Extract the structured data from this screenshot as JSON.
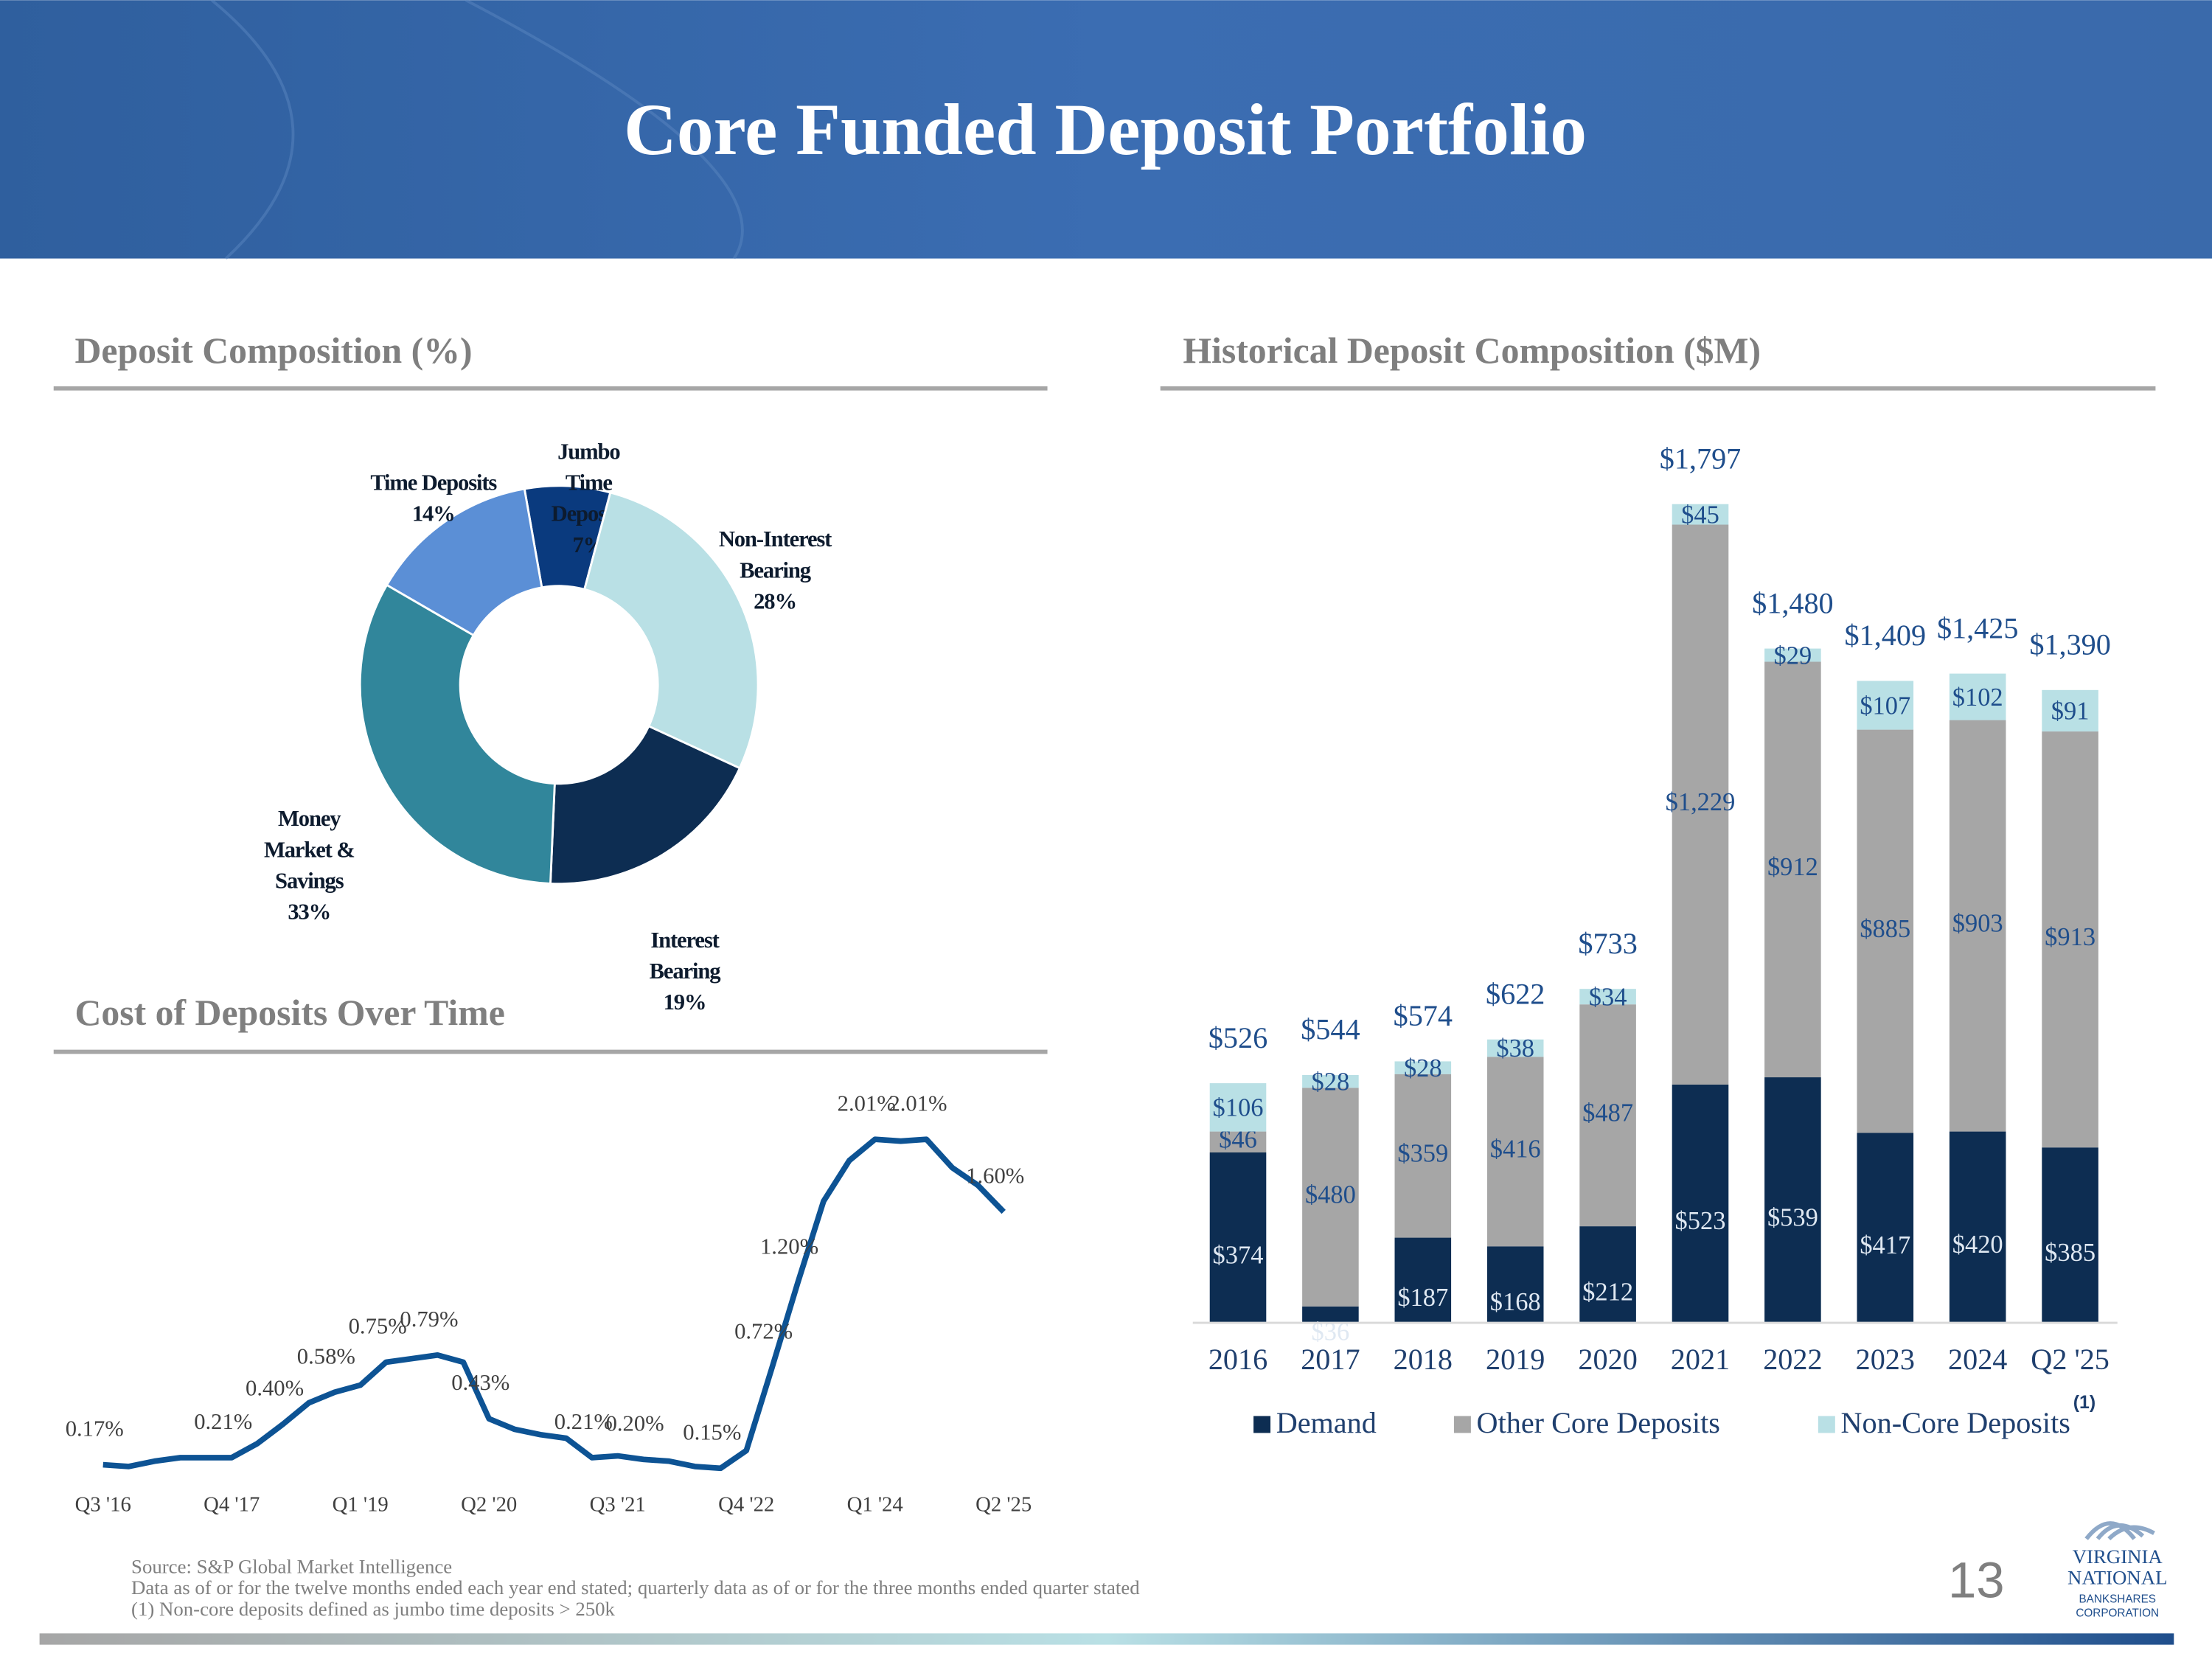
{
  "title": "Core Funded Deposit Portfolio",
  "page_number": "13",
  "footnotes": [
    "Source: S&P Global Market Intelligence",
    "Data as of or for the twelve months ended each year end stated; quarterly data as of or for the three months ended quarter stated",
    "(1)    Non-core deposits defined as jumbo time deposits > 250k"
  ],
  "logo": [
    "VIRGINIA",
    "NATIONAL",
    "BANKSHARES",
    "CORPORATION"
  ],
  "chart_data": [
    {
      "type": "pie",
      "title": "Deposit Composition (%)",
      "categories": [
        "Jumbo Time Deposits",
        "Non-Interest Bearing",
        "Interest Bearing",
        "Money Market & Savings",
        "Time Deposits"
      ],
      "values": [
        7,
        28,
        19,
        33,
        14
      ],
      "value_labels": [
        "7%",
        "28%",
        "19%",
        "33%",
        "14%"
      ],
      "colors": [
        "#0a3a7e",
        "#b9e0e5",
        "#0d2d52",
        "#31869b",
        "#5b8fd6"
      ]
    },
    {
      "type": "line",
      "title": "Cost of Deposits Over Time",
      "categories": [
        "Q3 '16",
        null,
        null,
        null,
        null,
        "Q4 '17",
        null,
        null,
        null,
        null,
        "Q1 '19",
        null,
        null,
        null,
        null,
        "Q2 '20",
        null,
        null,
        null,
        null,
        "Q3 '21",
        null,
        null,
        null,
        null,
        "Q4 '22",
        null,
        null,
        null,
        null,
        "Q1 '24",
        null,
        null,
        null,
        null,
        "Q2 '25"
      ],
      "values": [
        0.17,
        0.16,
        0.19,
        0.21,
        0.21,
        0.21,
        0.29,
        0.4,
        0.52,
        0.58,
        0.62,
        0.75,
        0.77,
        0.79,
        0.75,
        0.43,
        0.37,
        0.34,
        0.32,
        0.21,
        0.22,
        0.2,
        0.19,
        0.16,
        0.15,
        0.25,
        0.72,
        1.2,
        1.66,
        1.89,
        2.01,
        2.0,
        2.01,
        1.85,
        1.75,
        1.6
      ],
      "value_labels": [
        "0.17%",
        null,
        null,
        null,
        null,
        "0.21%",
        null,
        "0.40%",
        null,
        "0.58%",
        null,
        "0.75%",
        null,
        "0.79%",
        null,
        "0.43%",
        null,
        null,
        null,
        "0.21%",
        null,
        "0.20%",
        null,
        null,
        "0.15%",
        null,
        "0.72%",
        "1.20%",
        null,
        null,
        "2.01%",
        null,
        "2.01%",
        null,
        null,
        "1.60%"
      ],
      "color": "#0d5394"
    },
    {
      "type": "bar",
      "title": "Historical Deposit Composition ($M)",
      "stacked": true,
      "categories": [
        "2016",
        "2017",
        "2018",
        "2019",
        "2020",
        "2021",
        "2022",
        "2023",
        "2024",
        "Q2 '25"
      ],
      "series": [
        {
          "name": "Demand",
          "color": "#0d2d52",
          "values": [
            374,
            36,
            187,
            168,
            212,
            523,
            539,
            417,
            420,
            385
          ],
          "value_labels": [
            "$374",
            "$36",
            "$187",
            "$168",
            "$212",
            "$523",
            "$539",
            "$417",
            "$420",
            "$385"
          ]
        },
        {
          "name": "Other Core Deposits",
          "color": "#a6a6a6",
          "values": [
            46,
            480,
            359,
            416,
            487,
            1229,
            912,
            885,
            903,
            913
          ],
          "value_labels": [
            "$46",
            "$480",
            "$359",
            "$416",
            "$487",
            "$1,229",
            "$912",
            "$885",
            "$903",
            "$913"
          ]
        },
        {
          "name": "Non-Core Deposits",
          "color": "#b9e0e5",
          "values": [
            106,
            28,
            28,
            38,
            34,
            45,
            29,
            107,
            102,
            91
          ],
          "value_labels": [
            "$106",
            "$28",
            "$28",
            "$38",
            "$34",
            "$45",
            "$29",
            "$107",
            "$102",
            "$91"
          ]
        }
      ],
      "totals": [
        526,
        544,
        574,
        622,
        733,
        1797,
        1480,
        1409,
        1425,
        1390
      ],
      "total_labels": [
        "$526",
        "$544",
        "$574",
        "$622",
        "$733",
        "$1,797",
        "$1,480",
        "$1,409",
        "$1,425",
        "$1,390"
      ],
      "legend_note": "(1)",
      "legend": "bottom"
    }
  ]
}
